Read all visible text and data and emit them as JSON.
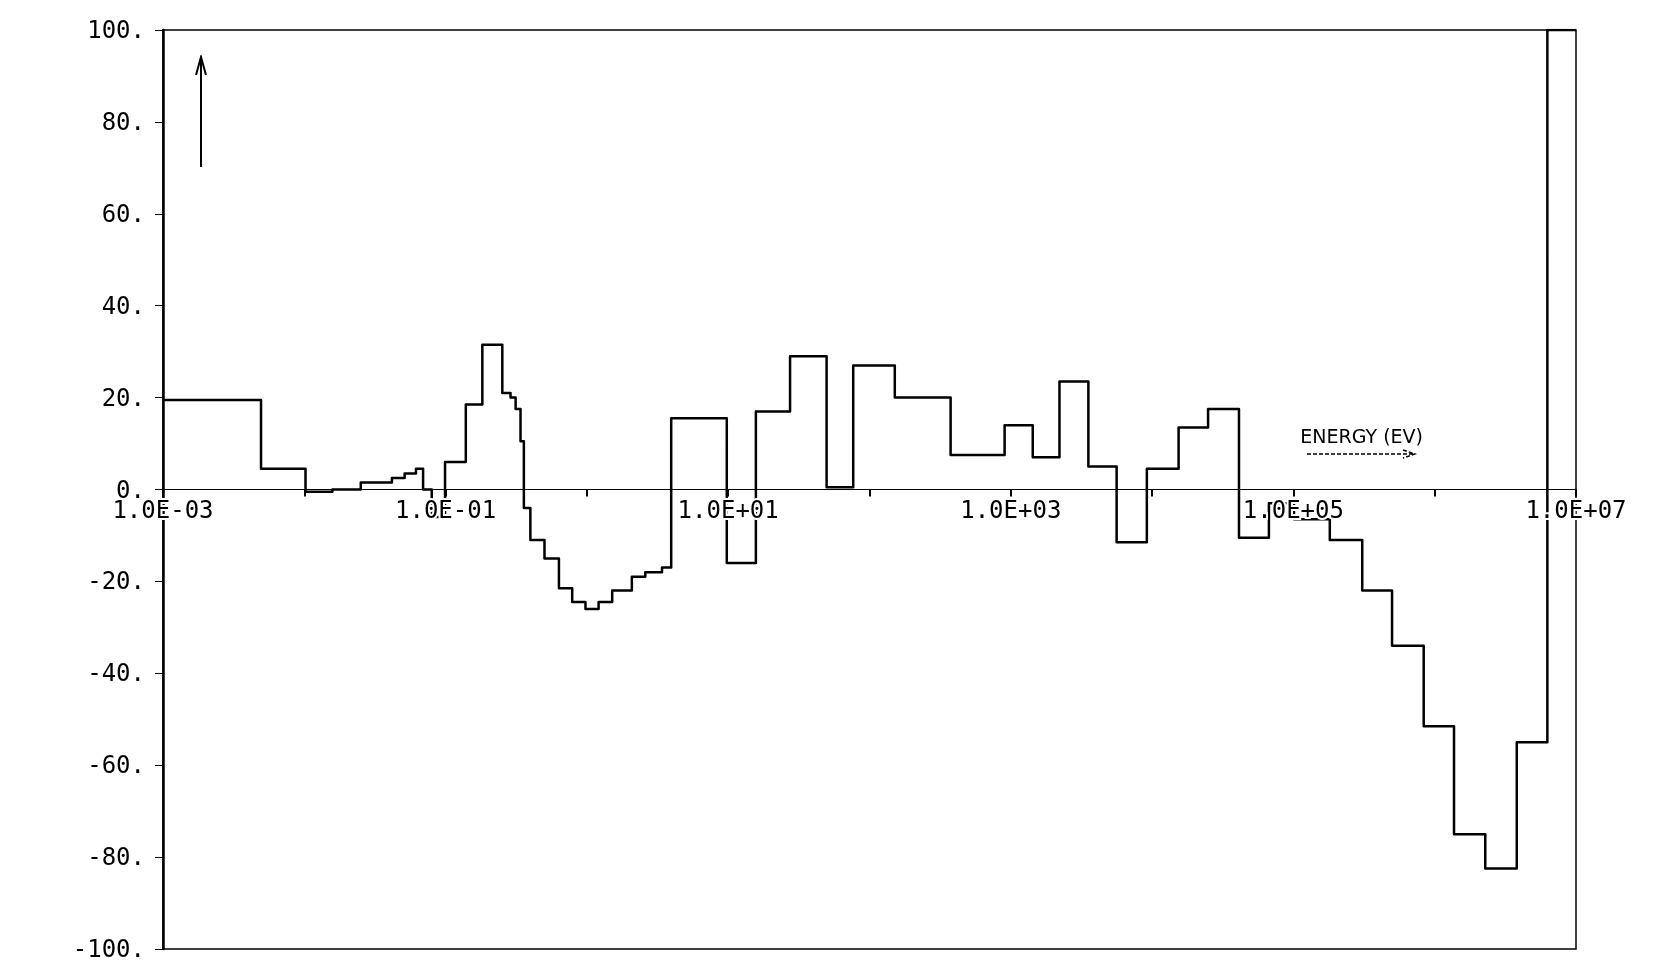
{
  "chart_data": {
    "type": "step",
    "xlabel": "ENERGY (EV)",
    "log": "x",
    "x": [
      0.001,
      0.00494,
      0.0102,
      0.0158,
      0.0251,
      0.0417,
      0.0513,
      0.0617,
      0.0693,
      0.0798,
      0.0991,
      0.139,
      0.182,
      0.252,
      0.288,
      0.313,
      0.339,
      0.358,
      0.398,
      0.501,
      0.634,
      0.787,
      0.977,
      1.21,
      1.51,
      2.08,
      2.59,
      3.4,
      3.95,
      9.77,
      15.7,
      27.4,
      49.7,
      76.7,
      151,
      375,
      904,
      1430,
      2210,
      3540,
      5610,
      9180,
      15400,
      24900,
      41200,
      67100,
      101000,
      181000,
      307000,
      499000,
      836000,
      1370000,
      2280000,
      3810000,
      6270000,
      10000000
    ],
    "series": [
      {
        "color": "#000000",
        "values": [
          19.5,
          4.5,
          -0.5,
          0,
          1.5,
          2.5,
          3.5,
          4.5,
          0,
          -6,
          6,
          18.5,
          31.5,
          21,
          20,
          17.5,
          10.5,
          -4,
          -11,
          -15,
          -21.5,
          -24.5,
          -26,
          -24.5,
          -22,
          -19,
          -18,
          -17,
          15.5,
          -16,
          17,
          29,
          0.5,
          27,
          20,
          7.5,
          14,
          7,
          23.5,
          5,
          -11.5,
          4.5,
          13.5,
          17.5,
          -10.5,
          -3,
          -6.5,
          -11,
          -22,
          -34,
          -51.5,
          -75,
          -82.5,
          -55,
          100,
          100
        ]
      }
    ],
    "xlim": [
      0.001,
      10000000
    ],
    "xticks": [
      {
        "value": 0.001,
        "label": "1.0E-03"
      },
      {
        "value": 0.01,
        "label": null
      },
      {
        "value": 0.1,
        "label": "1.0E-01"
      },
      {
        "value": 1,
        "label": null
      },
      {
        "value": 10,
        "label": "1.0E+01"
      },
      {
        "value": 100,
        "label": null
      },
      {
        "value": 1000,
        "label": "1.0E+03"
      },
      {
        "value": 10000,
        "label": null
      },
      {
        "value": 100000,
        "label": "1.0E+05"
      },
      {
        "value": 1000000,
        "label": null
      },
      {
        "value": 10000000,
        "label": "1.0E+07"
      }
    ],
    "ylim": [
      -100,
      100
    ],
    "yticks": [
      {
        "value": -100,
        "label": "-100."
      },
      {
        "value": -80,
        "label": "-80."
      },
      {
        "value": -60,
        "label": "-60."
      },
      {
        "value": -40,
        "label": "-40."
      },
      {
        "value": -20,
        "label": "-20."
      },
      {
        "value": 0,
        "label": "0."
      },
      {
        "value": 20,
        "label": "20."
      },
      {
        "value": 40,
        "label": "40."
      },
      {
        "value": 60,
        "label": "60."
      },
      {
        "value": 80,
        "label": "80."
      },
      {
        "value": 100,
        "label": "100."
      }
    ],
    "grid": false,
    "marker": "none",
    "line_style": "solid"
  }
}
